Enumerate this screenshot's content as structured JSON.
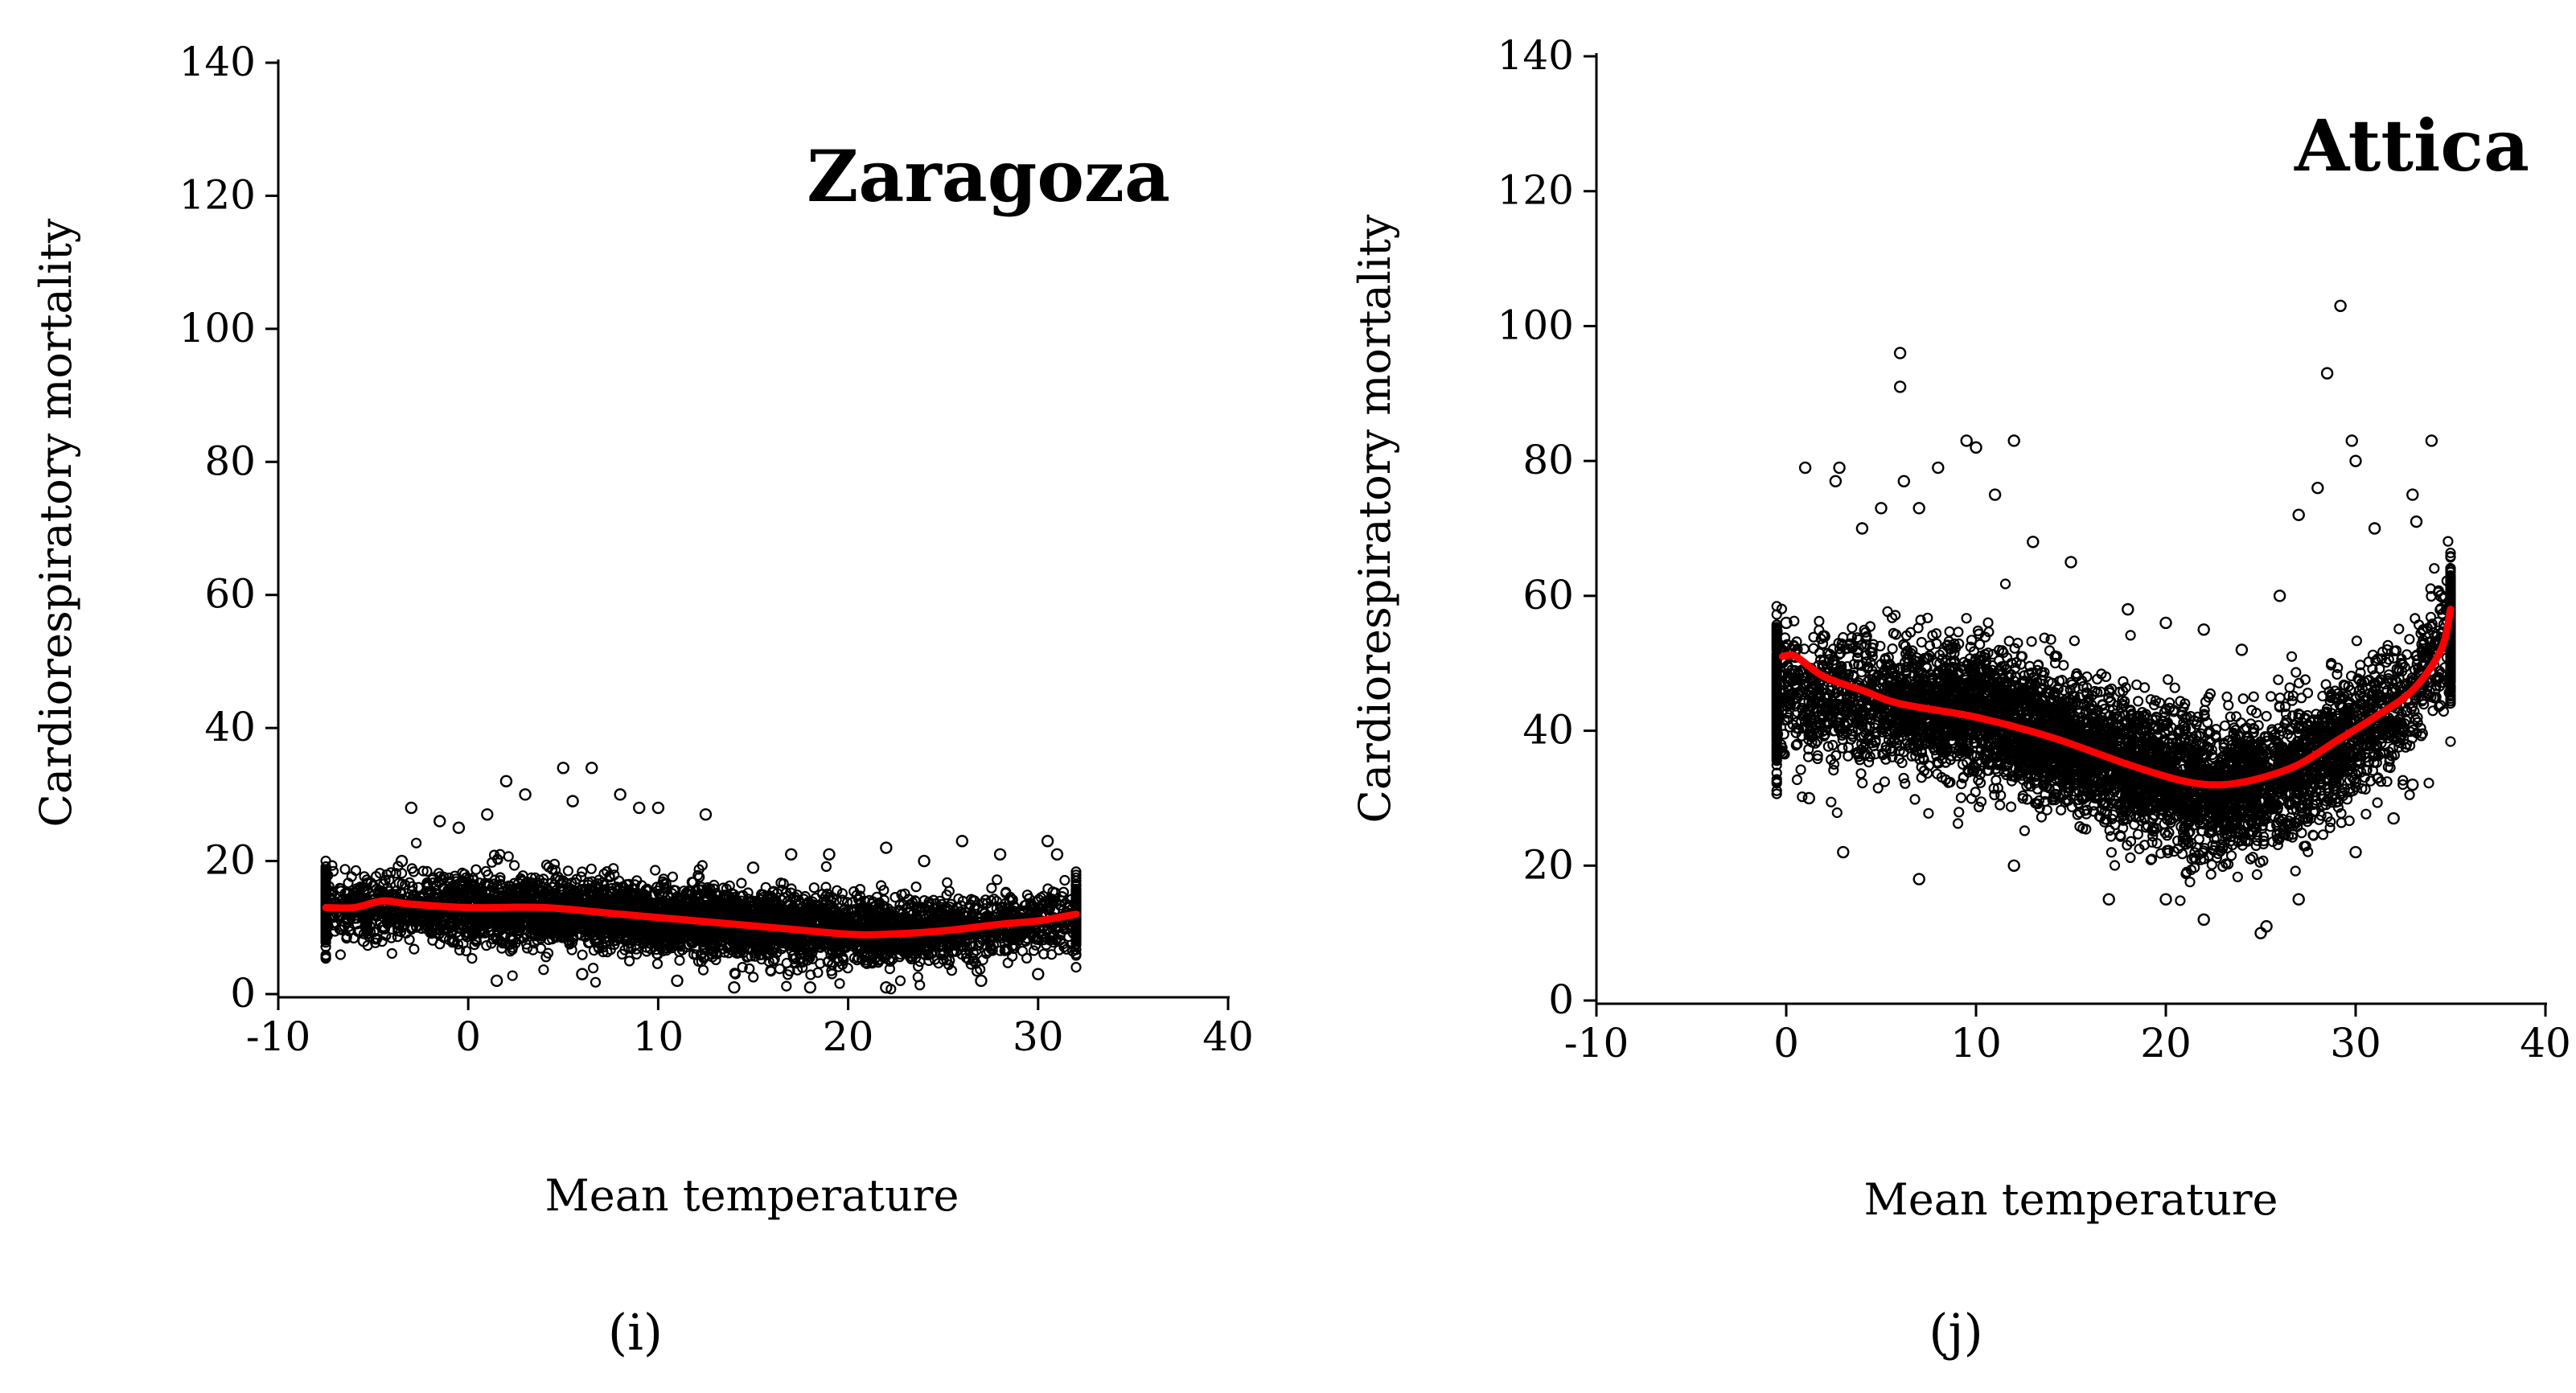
{
  "chart_data": [
    {
      "type": "scatter",
      "panel_label": "(i)",
      "city": "Zaragoza",
      "xlabel": "Mean temperature",
      "ylabel": "Cardiorespiratory mortality",
      "xlim": [
        -10,
        40
      ],
      "ylim": [
        0,
        140
      ],
      "xticks": [
        "-10",
        "0",
        "10",
        "20",
        "30",
        "40"
      ],
      "yticks": [
        "0",
        "20",
        "40",
        "60",
        "80",
        "100",
        "120",
        "140"
      ],
      "cloud": {
        "x_range": [
          -7.5,
          32
        ],
        "center": [
          [
            -7,
            13
          ],
          [
            0,
            13
          ],
          [
            5,
            12.5
          ],
          [
            10,
            11.5
          ],
          [
            15,
            10.5
          ],
          [
            20,
            9.5
          ],
          [
            25,
            9.5
          ],
          [
            30,
            11
          ],
          [
            32,
            12
          ]
        ],
        "spread": 4.5
      },
      "series": [
        {
          "name": "observed",
          "kind": "points",
          "note": "daily observations (dense cloud)",
          "points": [
            [
              -6.5,
              13
            ],
            [
              -5,
              14
            ],
            [
              -4.5,
              10
            ],
            [
              -3.5,
              20
            ],
            [
              -3,
              28
            ],
            [
              -1.5,
              26
            ],
            [
              -0.5,
              25
            ],
            [
              1,
              27
            ],
            [
              2,
              32
            ],
            [
              3,
              30
            ],
            [
              5,
              34
            ],
            [
              5.5,
              29
            ],
            [
              6.5,
              34
            ],
            [
              8,
              30
            ],
            [
              9,
              28
            ],
            [
              10,
              28
            ],
            [
              12.5,
              27
            ],
            [
              15,
              19
            ],
            [
              17,
              21
            ],
            [
              19,
              21
            ],
            [
              22,
              22
            ],
            [
              24,
              20
            ],
            [
              26,
              23
            ],
            [
              28,
              21
            ],
            [
              30.5,
              23
            ],
            [
              31,
              21
            ],
            [
              -5.5,
              8
            ],
            [
              1.5,
              2
            ],
            [
              6,
              3
            ],
            [
              11,
              2
            ],
            [
              14,
              1
            ],
            [
              18,
              1
            ],
            [
              22,
              1
            ],
            [
              27,
              2
            ],
            [
              30,
              3
            ]
          ]
        },
        {
          "name": "fit",
          "kind": "smooth",
          "color": "#ff0000",
          "x": [
            -7.5,
            -6,
            -4.5,
            -3,
            0,
            4,
            8,
            12,
            16,
            20,
            22,
            25,
            28,
            30,
            32
          ],
          "y": [
            13,
            13,
            14,
            13.5,
            13,
            13,
            12,
            11,
            10,
            9,
            9,
            9.5,
            10.5,
            11,
            12
          ]
        }
      ]
    },
    {
      "type": "scatter",
      "panel_label": "(j)",
      "city": "Attica",
      "xlabel": "Mean temperature",
      "ylabel": "Cardiorespiratory mortality",
      "xlim": [
        -10,
        40
      ],
      "ylim": [
        0,
        140
      ],
      "xticks": [
        "-10",
        "0",
        "10",
        "20",
        "30",
        "40"
      ],
      "yticks": [
        "0",
        "20",
        "40",
        "60",
        "80",
        "100",
        "120",
        "140"
      ],
      "cloud": {
        "x_range": [
          -0.5,
          35
        ],
        "center": [
          [
            0,
            45
          ],
          [
            5,
            44
          ],
          [
            10,
            43
          ],
          [
            15,
            38
          ],
          [
            20,
            33
          ],
          [
            23,
            31
          ],
          [
            26,
            33
          ],
          [
            29,
            37
          ],
          [
            33,
            45
          ],
          [
            35,
            55
          ]
        ],
        "spread": 9
      },
      "series": [
        {
          "name": "observed",
          "kind": "points",
          "note": "daily observations (dense cloud)",
          "points": [
            [
              -0.3,
              37
            ],
            [
              0,
              56
            ],
            [
              0.5,
              45
            ],
            [
              1,
              79
            ],
            [
              1.2,
              30
            ],
            [
              2,
              54
            ],
            [
              2.6,
              77
            ],
            [
              2.8,
              79
            ],
            [
              4,
              70
            ],
            [
              5,
              73
            ],
            [
              6,
              96
            ],
            [
              6,
              91
            ],
            [
              6.2,
              77
            ],
            [
              7,
              73
            ],
            [
              8,
              79
            ],
            [
              9.5,
              83
            ],
            [
              10,
              82
            ],
            [
              11,
              75
            ],
            [
              12,
              83
            ],
            [
              13,
              68
            ],
            [
              15,
              65
            ],
            [
              18,
              58
            ],
            [
              20,
              56
            ],
            [
              22,
              55
            ],
            [
              24,
              52
            ],
            [
              26,
              60
            ],
            [
              27,
              72
            ],
            [
              28,
              76
            ],
            [
              28.5,
              93
            ],
            [
              29.2,
              103
            ],
            [
              29.8,
              83
            ],
            [
              30,
              80
            ],
            [
              31,
              70
            ],
            [
              33,
              75
            ],
            [
              33.2,
              71
            ],
            [
              34,
              83
            ],
            [
              34.5,
              60
            ],
            [
              3,
              22
            ],
            [
              7,
              18
            ],
            [
              12,
              20
            ],
            [
              17,
              15
            ],
            [
              20,
              15
            ],
            [
              22,
              12
            ],
            [
              25,
              10
            ],
            [
              25.3,
              11
            ],
            [
              27,
              15
            ],
            [
              30,
              22
            ],
            [
              32,
              27
            ],
            [
              33,
              32
            ]
          ]
        },
        {
          "name": "fit",
          "kind": "smooth",
          "color": "#ff0000",
          "x": [
            -0.2,
            0.5,
            2,
            4,
            6,
            10,
            14,
            18,
            21,
            23,
            25,
            27,
            29,
            31,
            33,
            34.5,
            35
          ],
          "y": [
            51,
            51,
            48,
            46,
            44,
            42,
            39,
            35,
            32.5,
            32,
            33,
            35,
            38.5,
            42,
            46,
            52,
            58
          ]
        }
      ]
    }
  ]
}
